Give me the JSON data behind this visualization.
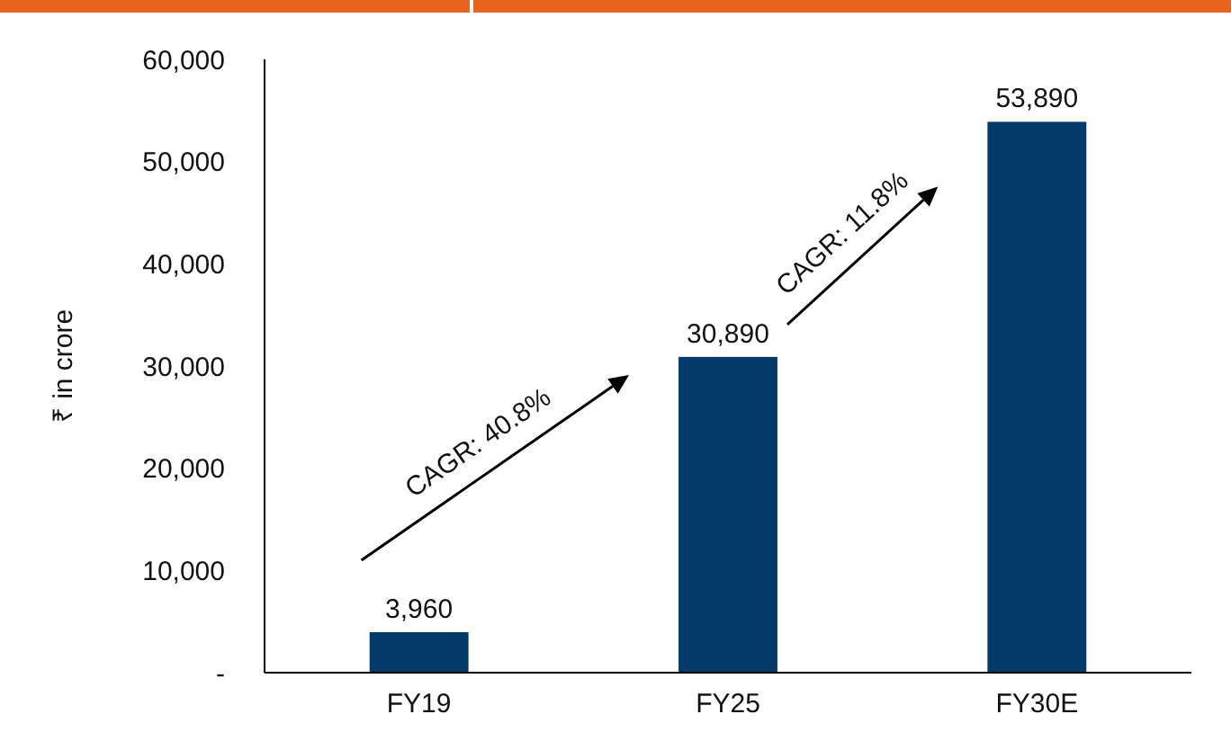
{
  "chart_data": {
    "type": "bar",
    "ylabel": "₹ in crore",
    "categories": [
      "FY19",
      "FY25",
      "FY30E"
    ],
    "values": [
      3960,
      30890,
      53890
    ],
    "value_labels": [
      "3,960",
      "30,890",
      "53,890"
    ],
    "color": "#023b6b",
    "ylim": [
      0,
      60000
    ],
    "yticks": [
      {
        "value": 0,
        "label": "-"
      },
      {
        "value": 10000,
        "label": "10,000"
      },
      {
        "value": 20000,
        "label": "20,000"
      },
      {
        "value": 30000,
        "label": "30,000"
      },
      {
        "value": 40000,
        "label": "40,000"
      },
      {
        "value": 50000,
        "label": "50,000"
      },
      {
        "value": 60000,
        "label": "60,000"
      }
    ],
    "grid": false,
    "annotations": [
      "CAGR: 40.8%",
      "CAGR: 11.8%"
    ]
  }
}
